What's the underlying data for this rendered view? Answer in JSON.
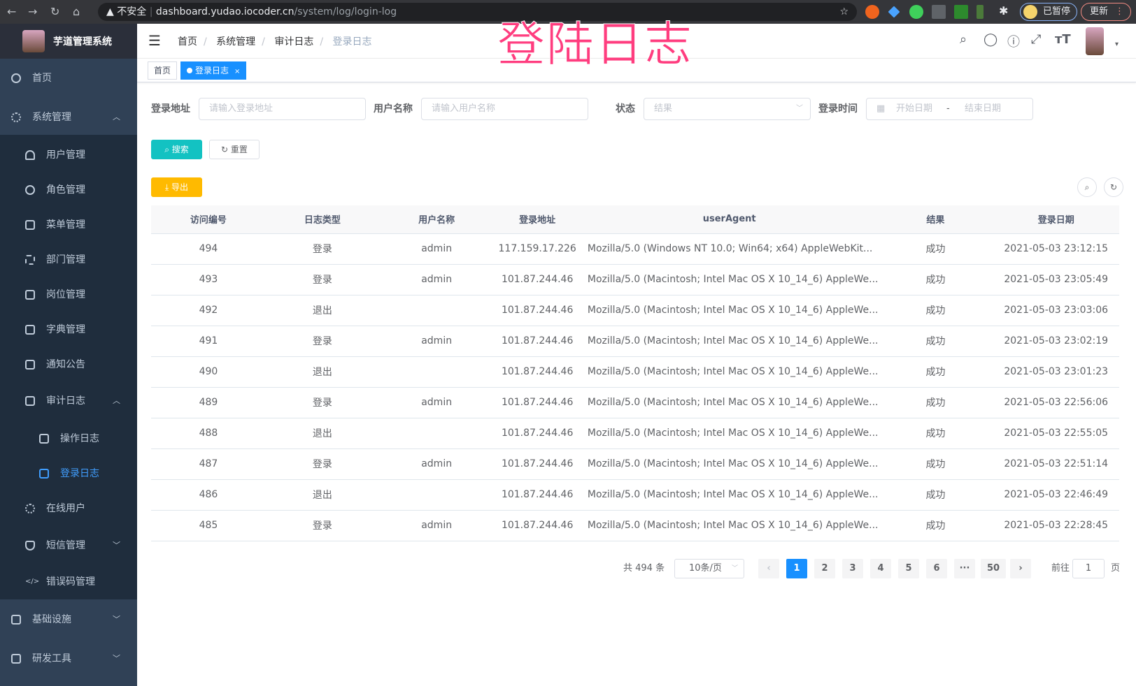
{
  "browser": {
    "security": "不安全",
    "url_host": "dashboard.yudao.iocoder.cn",
    "url_path": "/system/log/login-log",
    "profile": "已暂停",
    "update": "更新"
  },
  "overlay_title": "登陆日志",
  "sidebar": {
    "app_name": "芋道管理系统",
    "items": [
      {
        "label": "首页",
        "icon": "dashboard-icon"
      },
      {
        "label": "系统管理",
        "icon": "gear-icon",
        "expanded": true,
        "children": [
          {
            "label": "用户管理",
            "icon": "user-icon"
          },
          {
            "label": "角色管理",
            "icon": "peoples-icon"
          },
          {
            "label": "菜单管理",
            "icon": "tree-table-icon"
          },
          {
            "label": "部门管理",
            "icon": "tree-icon"
          },
          {
            "label": "岗位管理",
            "icon": "post-icon"
          },
          {
            "label": "字典管理",
            "icon": "dict-icon"
          },
          {
            "label": "通知公告",
            "icon": "message-icon"
          },
          {
            "label": "审计日志",
            "icon": "log-icon",
            "expanded": true,
            "children": [
              {
                "label": "操作日志",
                "icon": "form-icon"
              },
              {
                "label": "登录日志",
                "icon": "logininfor-icon",
                "active": true
              }
            ]
          },
          {
            "label": "在线用户",
            "icon": "online-icon"
          },
          {
            "label": "短信管理",
            "icon": "shield-icon"
          },
          {
            "label": "错误码管理",
            "icon": "code-icon"
          }
        ]
      },
      {
        "label": "基础设施",
        "icon": "monitor-icon"
      },
      {
        "label": "研发工具",
        "icon": "tool-icon"
      }
    ]
  },
  "breadcrumb": [
    "首页",
    "系统管理",
    "审计日志",
    "登录日志"
  ],
  "tags": [
    {
      "label": "首页"
    },
    {
      "label": "登录日志",
      "active": true
    }
  ],
  "filters": {
    "address_label": "登录地址",
    "address_placeholder": "请输入登录地址",
    "username_label": "用户名称",
    "username_placeholder": "请输入用户名称",
    "status_label": "状态",
    "status_placeholder": "结果",
    "time_label": "登录时间",
    "start_placeholder": "开始日期",
    "end_placeholder": "结束日期",
    "separator": "-"
  },
  "buttons": {
    "search": "搜索",
    "reset": "重置",
    "export": "导出"
  },
  "table": {
    "columns": [
      "访问编号",
      "日志类型",
      "用户名称",
      "登录地址",
      "userAgent",
      "结果",
      "登录日期"
    ],
    "rows": [
      [
        "494",
        "登录",
        "admin",
        "117.159.17.226",
        "Mozilla/5.0 (Windows NT 10.0; Win64; x64) AppleWebKit...",
        "成功",
        "2021-05-03 23:12:15"
      ],
      [
        "493",
        "登录",
        "admin",
        "101.87.244.46",
        "Mozilla/5.0 (Macintosh; Intel Mac OS X 10_14_6) AppleWe...",
        "成功",
        "2021-05-03 23:05:49"
      ],
      [
        "492",
        "退出",
        "",
        "101.87.244.46",
        "Mozilla/5.0 (Macintosh; Intel Mac OS X 10_14_6) AppleWe...",
        "成功",
        "2021-05-03 23:03:06"
      ],
      [
        "491",
        "登录",
        "admin",
        "101.87.244.46",
        "Mozilla/5.0 (Macintosh; Intel Mac OS X 10_14_6) AppleWe...",
        "成功",
        "2021-05-03 23:02:19"
      ],
      [
        "490",
        "退出",
        "",
        "101.87.244.46",
        "Mozilla/5.0 (Macintosh; Intel Mac OS X 10_14_6) AppleWe...",
        "成功",
        "2021-05-03 23:01:23"
      ],
      [
        "489",
        "登录",
        "admin",
        "101.87.244.46",
        "Mozilla/5.0 (Macintosh; Intel Mac OS X 10_14_6) AppleWe...",
        "成功",
        "2021-05-03 22:56:06"
      ],
      [
        "488",
        "退出",
        "",
        "101.87.244.46",
        "Mozilla/5.0 (Macintosh; Intel Mac OS X 10_14_6) AppleWe...",
        "成功",
        "2021-05-03 22:55:05"
      ],
      [
        "487",
        "登录",
        "admin",
        "101.87.244.46",
        "Mozilla/5.0 (Macintosh; Intel Mac OS X 10_14_6) AppleWe...",
        "成功",
        "2021-05-03 22:51:14"
      ],
      [
        "486",
        "退出",
        "",
        "101.87.244.46",
        "Mozilla/5.0 (Macintosh; Intel Mac OS X 10_14_6) AppleWe...",
        "成功",
        "2021-05-03 22:46:49"
      ],
      [
        "485",
        "登录",
        "admin",
        "101.87.244.46",
        "Mozilla/5.0 (Macintosh; Intel Mac OS X 10_14_6) AppleWe...",
        "成功",
        "2021-05-03 22:28:45"
      ]
    ]
  },
  "pagination": {
    "total": "共 494 条",
    "page_size": "10条/页",
    "pages": [
      "1",
      "2",
      "3",
      "4",
      "5",
      "6",
      "···",
      "50"
    ],
    "current": "1",
    "goto_label": "前往",
    "goto_value": "1",
    "goto_suffix": "页"
  },
  "colors": {
    "sidebar_bg": "#304156",
    "active": "#409eff",
    "primary": "#1890ff",
    "search_btn": "#13c2c2",
    "export_btn": "#ffba00",
    "overlay": "#ff3d7f"
  }
}
